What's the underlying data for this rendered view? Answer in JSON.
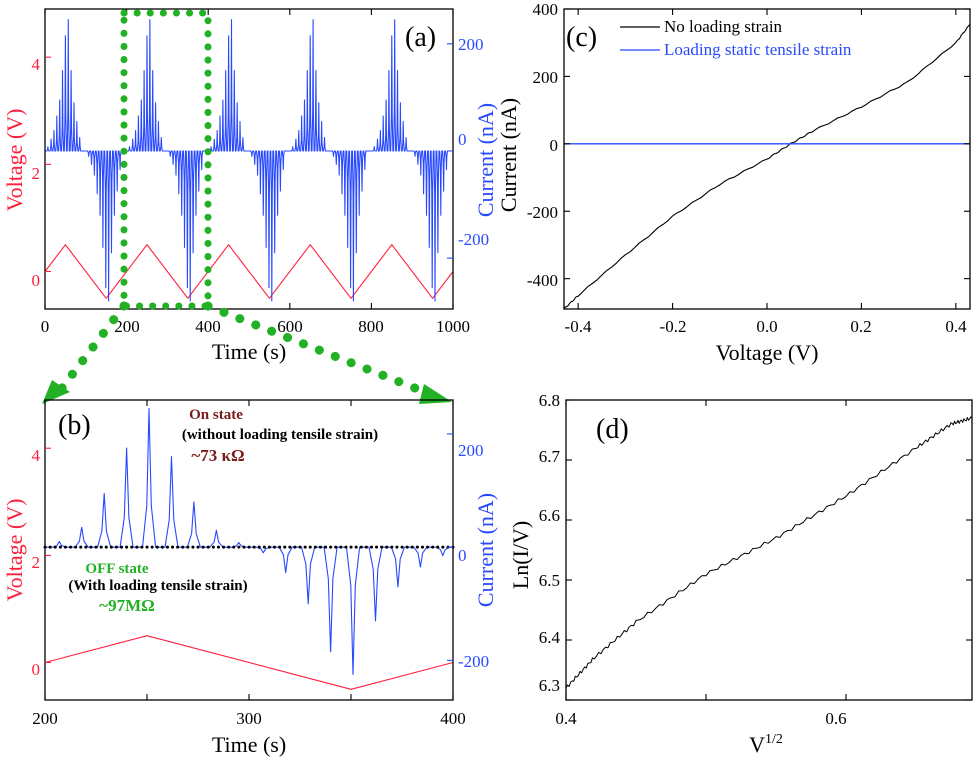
{
  "colors": {
    "voltage": "#ff1f3d",
    "current": "#2849ff",
    "black": "#000000",
    "green_marker": "#22b024",
    "on_state": "#7a1c1c"
  },
  "panels": {
    "a": {
      "label": "(a)",
      "xlabel": "Time (s)",
      "ylabel_left": "Voltage (V)",
      "ylabel_right": "Current (nA)",
      "xticks": [
        "0",
        "200",
        "400",
        "600",
        "800",
        "1000"
      ],
      "yticks_left": [
        "0",
        "2",
        "4"
      ],
      "yticks_right": [
        "-200",
        "0",
        "200"
      ]
    },
    "b": {
      "label": "(b)",
      "xlabel": "Time (s)",
      "ylabel_left": "Voltage (V)",
      "ylabel_right": "Current (nA)",
      "xticks": [
        "200",
        "300",
        "400"
      ],
      "yticks_left": [
        "0",
        "2",
        "4"
      ],
      "yticks_right": [
        "-200",
        "0",
        "200"
      ],
      "annotations": {
        "on_state": "On state",
        "on_detail": "(without loading tensile strain)",
        "on_resistance": "~73 κΩ",
        "off_state": "OFF state",
        "off_detail": "(With loading tensile strain)",
        "off_resistance": "~97MΩ"
      }
    },
    "c": {
      "label": "(c)",
      "xlabel": "Voltage (V)",
      "ylabel": "Current (nA)",
      "xticks": [
        "-0.4",
        "-0.2",
        "0.0",
        "0.2",
        "0.4"
      ],
      "yticks": [
        "-400",
        "-200",
        "0",
        "200",
        "400"
      ],
      "legend": [
        "No loading strain",
        "Loading static tensile strain"
      ]
    },
    "d": {
      "label": "(d)",
      "xlabel_base": "V",
      "xlabel_sup": "1/2",
      "ylabel": "Ln(I/V)",
      "xticks": [
        "0.4",
        "0.6"
      ],
      "yticks": [
        "6.3",
        "6.4",
        "6.5",
        "6.6",
        "6.7",
        "6.8"
      ]
    }
  },
  "chart_data": [
    {
      "type": "line",
      "panel": "a",
      "xlabel": "Time (s)",
      "ylabel": "Voltage (V)",
      "ylabel_right": "Current (nA)",
      "xlim": [
        0,
        1000
      ],
      "ylim_left": [
        -0.7,
        4.9
      ],
      "ylim_right": [
        -295,
        265
      ],
      "series": [
        {
          "name": "Voltage",
          "axis": "left",
          "x": [
            0,
            50,
            150,
            250,
            350,
            450,
            550,
            650,
            750,
            850,
            950,
            1000
          ],
          "y": [
            0,
            0.5,
            -0.5,
            0.5,
            -0.5,
            0.5,
            -0.5,
            0.5,
            -0.5,
            0.5,
            -0.5,
            0
          ]
        },
        {
          "name": "Current",
          "axis": "right",
          "pulse_period": 200,
          "pulse_times_positive": [
            7,
            15,
            22,
            29,
            36,
            43,
            50,
            57,
            64,
            71,
            78,
            85
          ],
          "pulse_heights_positive": [
            8,
            22,
            38,
            65,
            95,
            150,
            215,
            245,
            150,
            90,
            55,
            25
          ],
          "pulse_times_negative": [
            107,
            114,
            121,
            128,
            135,
            142,
            149,
            156,
            163,
            170,
            177,
            184
          ],
          "pulse_heights_negative": [
            -10,
            -25,
            -45,
            -80,
            -120,
            -180,
            -255,
            -280,
            -190,
            -120,
            -75,
            -35
          ]
        }
      ]
    },
    {
      "type": "line",
      "panel": "b",
      "xlabel": "Time (s)",
      "ylabel": "Voltage (V)",
      "ylabel_right": "Current (nA)",
      "xlim": [
        200,
        400
      ],
      "ylim_left": [
        -0.7,
        4.9
      ],
      "ylim_right": [
        -270,
        260
      ],
      "series": [
        {
          "name": "Voltage",
          "axis": "left",
          "x": [
            200,
            250,
            350,
            400
          ],
          "y": [
            0,
            0.5,
            -0.5,
            0
          ]
        },
        {
          "name": "Current (no strain)",
          "axis": "right",
          "pulse_times": [
            207,
            218,
            229,
            240,
            251,
            262,
            273,
            284,
            295,
            307,
            318,
            329,
            340,
            351,
            362,
            373,
            384,
            395
          ],
          "pulse_heights": [
            10,
            35,
            95,
            175,
            245,
            160,
            80,
            30,
            8,
            -10,
            -45,
            -100,
            -185,
            -225,
            -130,
            -70,
            -35,
            -15
          ]
        },
        {
          "name": "Current (with strain)",
          "axis": "right",
          "x": [
            200,
            400
          ],
          "y": [
            0,
            0
          ]
        }
      ]
    },
    {
      "type": "line",
      "panel": "c",
      "xlabel": "Voltage (V)",
      "ylabel": "Current (nA)",
      "xlim": [
        -0.43,
        0.43
      ],
      "ylim": [
        -490,
        400
      ],
      "series": [
        {
          "name": "No loading strain",
          "x": [
            -0.43,
            -0.4,
            -0.3,
            -0.2,
            -0.1,
            0.0,
            0.05,
            0.1,
            0.2,
            0.3,
            0.4,
            0.43
          ],
          "y": [
            -490,
            -450,
            -330,
            -215,
            -120,
            -45,
            0,
            40,
            110,
            185,
            300,
            355
          ]
        },
        {
          "name": "Loading static tensile strain",
          "x": [
            -0.43,
            0.43
          ],
          "y": [
            0,
            0
          ]
        }
      ]
    },
    {
      "type": "line",
      "panel": "d",
      "xlabel": "V^1/2",
      "ylabel": "Ln(I/V)",
      "xlim": [
        0.4,
        0.69
      ],
      "ylim": [
        6.3,
        6.8
      ],
      "series": [
        {
          "x": [
            0.4,
            0.42,
            0.45,
            0.5,
            0.55,
            0.6,
            0.65,
            0.675,
            0.69
          ],
          "y": [
            6.32,
            6.37,
            6.43,
            6.51,
            6.57,
            6.64,
            6.72,
            6.76,
            6.77
          ]
        }
      ]
    }
  ]
}
